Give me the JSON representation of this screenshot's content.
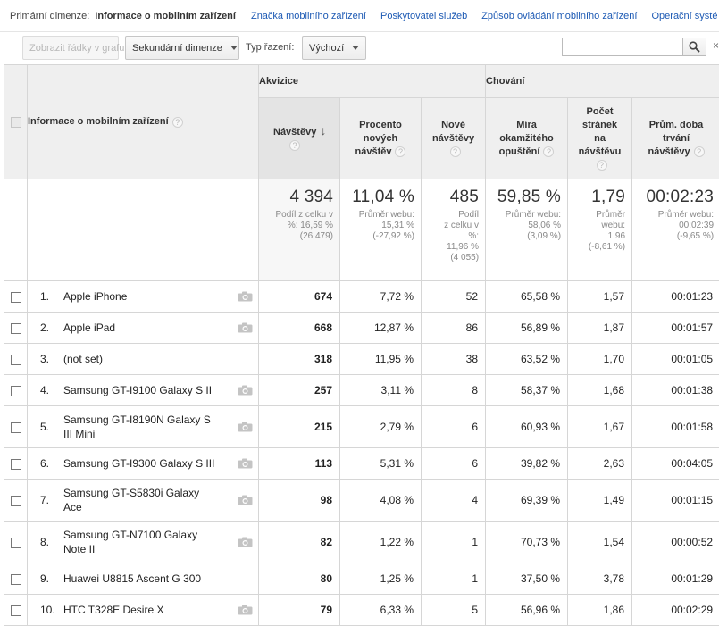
{
  "dimension_bar": {
    "label": "Primární dimenze:",
    "active": "Informace o mobilním zařízení",
    "links": [
      "Značka mobilního zařízení",
      "Poskytovatel služeb",
      "Způsob ovládání mobilního zařízení",
      "Operační systé"
    ]
  },
  "toolbar": {
    "plot_rows": "Zobrazit řádky v grafu",
    "secondary_dimension": "Sekundární dimenze",
    "sort_type_label": "Typ řazení:",
    "sort_type_value": "Výchozí",
    "search_placeholder": "",
    "close_glyph": "×"
  },
  "table": {
    "groups": {
      "acquisition": "Akvizice",
      "behavior": "Chování"
    },
    "dimension_header": "Informace o mobilním zařízení",
    "help_glyph": "?",
    "sort_glyph": "↓",
    "columns": [
      {
        "line1": "Návštěvy",
        "line2": "",
        "line3": "",
        "line4": ""
      },
      {
        "line1": "Procento",
        "line2": "nových",
        "line3": "návštěv",
        "line4": ""
      },
      {
        "line1": "Nové",
        "line2": "návštěvy",
        "line3": "",
        "line4": ""
      },
      {
        "line1": "Míra",
        "line2": "okamžitého",
        "line3": "opuštění",
        "line4": ""
      },
      {
        "line1": "Počet",
        "line2": "stránek",
        "line3": "na",
        "line4": "návštěvu"
      },
      {
        "line1": "Prům. doba",
        "line2": "trvání",
        "line3": "návštěvy",
        "line4": ""
      }
    ],
    "totals": [
      {
        "value": "4 394",
        "sub": [
          "Podíl z celku v",
          "%: 16,59 %",
          "(26 479)"
        ]
      },
      {
        "value": "11,04 %",
        "sub": [
          "Průměr webu:",
          "15,31 %",
          "(-27,92 %)"
        ]
      },
      {
        "value": "485",
        "sub": [
          "Podíl",
          "z celku v",
          "%:",
          "11,96 %",
          "(4 055)"
        ]
      },
      {
        "value": "59,85 %",
        "sub": [
          "Průměr webu:",
          "58,06 %",
          "(3,09 %)"
        ]
      },
      {
        "value": "1,79",
        "sub": [
          "Průměr",
          "webu:",
          "1,96",
          "(-8,61 %)"
        ]
      },
      {
        "value": "00:02:23",
        "sub": [
          "Průměr webu:",
          "00:02:39",
          "(-9,65 %)"
        ]
      }
    ],
    "rows": [
      {
        "n": "1.",
        "name": [
          "Apple iPhone"
        ],
        "camera": true,
        "visits": "674",
        "pct_new": "7,72 %",
        "new": "52",
        "bounce": "65,58 %",
        "pages": "1,57",
        "duration": "00:01:23"
      },
      {
        "n": "2.",
        "name": [
          "Apple iPad"
        ],
        "camera": true,
        "visits": "668",
        "pct_new": "12,87 %",
        "new": "86",
        "bounce": "56,89 %",
        "pages": "1,87",
        "duration": "00:01:57"
      },
      {
        "n": "3.",
        "name": [
          "(not set)"
        ],
        "camera": false,
        "visits": "318",
        "pct_new": "11,95 %",
        "new": "38",
        "bounce": "63,52 %",
        "pages": "1,70",
        "duration": "00:01:05"
      },
      {
        "n": "4.",
        "name": [
          "Samsung GT-I9100 Galaxy S II"
        ],
        "camera": true,
        "visits": "257",
        "pct_new": "3,11 %",
        "new": "8",
        "bounce": "58,37 %",
        "pages": "1,68",
        "duration": "00:01:38"
      },
      {
        "n": "5.",
        "name": [
          "Samsung GT-I8190N Galaxy S",
          "III Mini"
        ],
        "camera": true,
        "visits": "215",
        "pct_new": "2,79 %",
        "new": "6",
        "bounce": "60,93 %",
        "pages": "1,67",
        "duration": "00:01:58"
      },
      {
        "n": "6.",
        "name": [
          "Samsung GT-I9300 Galaxy S III"
        ],
        "camera": true,
        "visits": "113",
        "pct_new": "5,31 %",
        "new": "6",
        "bounce": "39,82 %",
        "pages": "2,63",
        "duration": "00:04:05"
      },
      {
        "n": "7.",
        "name": [
          "Samsung GT-S5830i Galaxy",
          "Ace"
        ],
        "camera": true,
        "visits": "98",
        "pct_new": "4,08 %",
        "new": "4",
        "bounce": "69,39 %",
        "pages": "1,49",
        "duration": "00:01:15"
      },
      {
        "n": "8.",
        "name": [
          "Samsung GT-N7100 Galaxy",
          "Note II"
        ],
        "camera": true,
        "visits": "82",
        "pct_new": "1,22 %",
        "new": "1",
        "bounce": "70,73 %",
        "pages": "1,54",
        "duration": "00:00:52"
      },
      {
        "n": "9.",
        "name": [
          "Huawei U8815 Ascent G 300"
        ],
        "camera": false,
        "visits": "80",
        "pct_new": "1,25 %",
        "new": "1",
        "bounce": "37,50 %",
        "pages": "3,78",
        "duration": "00:01:29"
      },
      {
        "n": "10.",
        "name": [
          "HTC T328E Desire X"
        ],
        "camera": true,
        "visits": "79",
        "pct_new": "6,33 %",
        "new": "5",
        "bounce": "56,96 %",
        "pages": "1,86",
        "duration": "00:02:29"
      }
    ]
  }
}
